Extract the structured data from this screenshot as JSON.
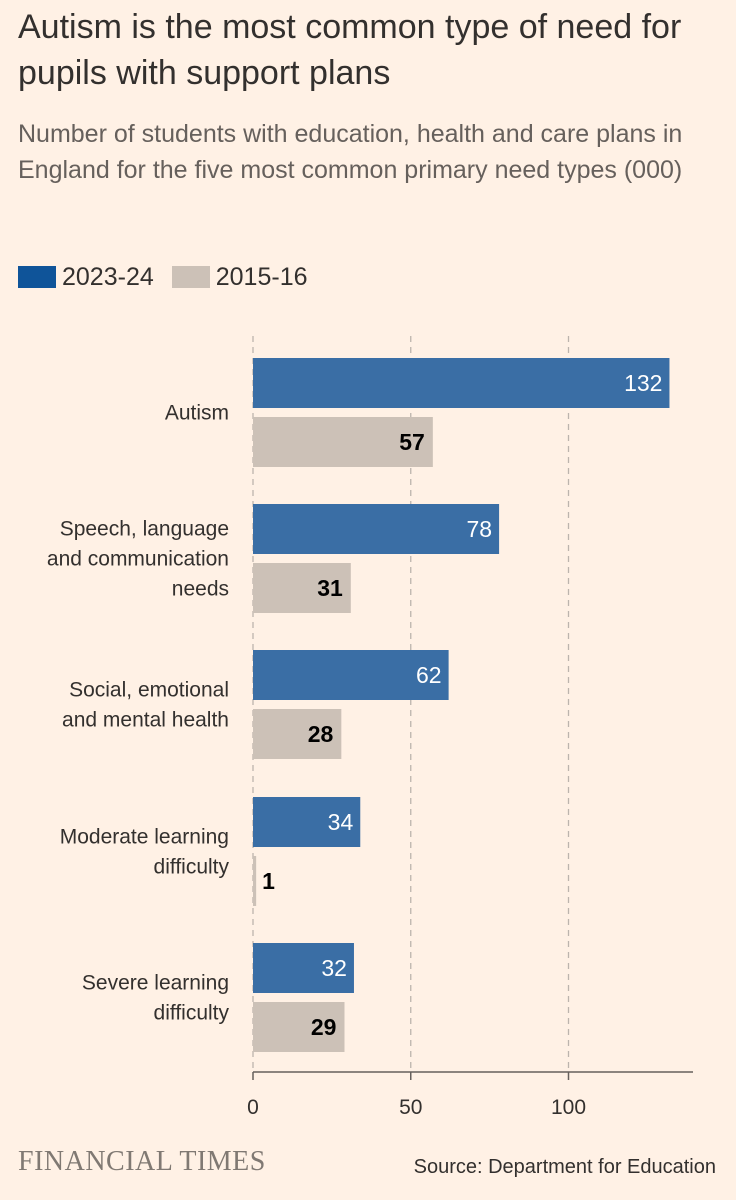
{
  "title": "Autism is the most common type of need for pupils with support plans",
  "subtitle": "Number of students with education, health and care plans in England for the five most common primary need types (000)",
  "legend": {
    "series1": "2023-24",
    "series2": "2015-16"
  },
  "colors": {
    "series1": "#3a6ea5",
    "series1_legend": "#0f5499",
    "series2": "#ccc1b7",
    "background": "#fff1e5"
  },
  "chart_data": {
    "type": "bar",
    "orientation": "horizontal",
    "categories": [
      [
        "Autism"
      ],
      [
        "Speech, language",
        "and communication",
        "needs"
      ],
      [
        "Social, emotional",
        "and mental health"
      ],
      [
        "Moderate learning",
        "difficulty"
      ],
      [
        "Severe learning",
        "difficulty"
      ]
    ],
    "series": [
      {
        "name": "2023-24",
        "values": [
          132,
          78,
          62,
          34,
          32
        ]
      },
      {
        "name": "2015-16",
        "values": [
          57,
          31,
          28,
          1,
          29
        ]
      }
    ],
    "xlim": [
      0,
      140
    ],
    "xticks": [
      0,
      50,
      100
    ],
    "grid": "vertical dashed",
    "title": "Autism is the most common type of need for pupils with support plans",
    "xlabel": "",
    "ylabel": ""
  },
  "footer": {
    "brand": "FINANCIAL TIMES",
    "source": "Source: Department for Education"
  }
}
